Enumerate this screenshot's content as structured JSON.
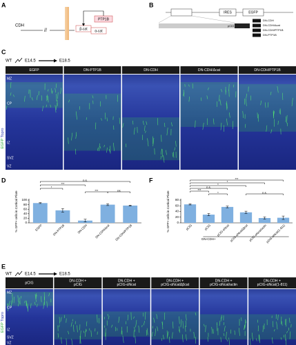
{
  "panel_a": {
    "label": "A",
    "cdh": "CDH",
    "ptp1b": "PTP1B",
    "beta_cat": "β-cat",
    "alpha_cat": "α-cat"
  },
  "panel_b": {
    "label": "B",
    "boxes": [
      "IRES",
      "EGFP"
    ],
    "vector": "pCIG",
    "constructs": [
      "DN-CDH",
      "DN-CDH/Δcat",
      "DN-CDH/PTP1B",
      "DN-PTP1B"
    ]
  },
  "panel_c": {
    "label": "C",
    "timeline": {
      "genotype": "WT",
      "start": "E14.5",
      "end": "E18.5"
    },
    "columns": [
      [
        "EGFP"
      ],
      [
        "DN-PTP1B"
      ],
      [
        "DN-CDH"
      ],
      [
        "DN-CDH/Δcat"
      ],
      [
        "DN-CDH/PTP1B"
      ]
    ],
    "layers": [
      "MZ",
      "CP",
      "IZ",
      "SVZ",
      "VZ"
    ],
    "stain": [
      "EGFP",
      " Topro"
    ]
  },
  "panel_e": {
    "label": "E",
    "timeline": {
      "genotype": "WT",
      "start": "E14.5",
      "end": "E18.5"
    },
    "columns": [
      [
        "pCIG"
      ],
      [
        "DN-CDH +",
        "pCIG"
      ],
      [
        "DN-CDH +",
        "pCIG-αNcat"
      ],
      [
        "DN-CDH +",
        "pCIG-αNcatΔβcat"
      ],
      [
        "DN-CDH +",
        "pCIG-αNcat/actin"
      ],
      [
        "DN-CDH +",
        "pCIG-αNcat(1-811)"
      ]
    ],
    "layers": [
      "MZ",
      "CP",
      "IZ",
      "SVZ",
      "VZ"
    ],
    "stain": [
      "EGFP",
      " Topro"
    ]
  },
  "chart_data": [
    {
      "type": "bar",
      "label": "D",
      "ylabel": "% GFP+ cells in Cortical Plate",
      "categories": [
        "EGFP",
        "DN-PTP1B",
        "DN-CDH",
        "DN-CDH/Δcat",
        "DN-CDH/PTP1B"
      ],
      "values": [
        87,
        55,
        10,
        80,
        76
      ],
      "errors": [
        2,
        8,
        6,
        4,
        2
      ],
      "color": "#7fb0e0",
      "ylim": [
        0,
        100
      ],
      "yticks": [
        0,
        20,
        40,
        60,
        80,
        100
      ],
      "annotations": [
        "n.s.",
        "***",
        "*",
        "***",
        "ns"
      ]
    },
    {
      "type": "bar",
      "label": "F",
      "ylabel": "% GFP+ cells in Cortical Plate",
      "categories": [
        "pCIG",
        "pCIG",
        "pCIG-αNcat",
        "pCIG-αNcatΔβcat",
        "pCIG-αNcat/actin",
        "pCIG-αNcat(1-811)"
      ],
      "group_label": "DN-CDH+",
      "values": [
        65,
        29,
        56,
        37,
        17,
        18
      ],
      "errors": [
        2,
        4,
        3,
        4,
        4,
        6
      ],
      "color": "#7fb0e0",
      "ylim": [
        0,
        80
      ],
      "yticks": [
        0,
        20,
        40,
        60,
        80
      ],
      "annotations": [
        "***",
        "*",
        "*",
        "n.s.",
        "***",
        "*",
        "n.s."
      ]
    }
  ]
}
